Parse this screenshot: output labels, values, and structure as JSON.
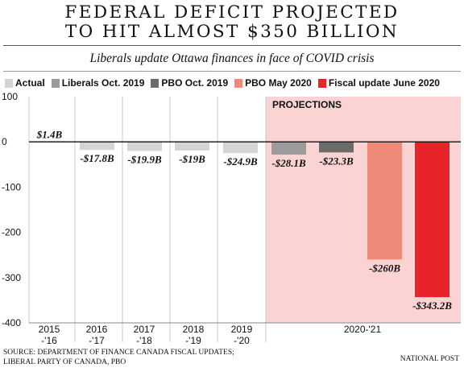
{
  "title_line1": "FEDERAL DEFICIT PROJECTED",
  "title_line2": "TO HIT ALMOST $350 BILLION",
  "subtitle": "Liberals update Ottawa finances in face of COVID crisis",
  "source_line1": "SOURCE: DEPARTMENT OF FINANCE CANADA FISCAL UPDATES;",
  "source_line2": "LIBERAL PARTY OF CANADA, PBO",
  "credit": "NATIONAL POST",
  "colors": {
    "actual": "#d4d4d4",
    "liberals_oct_2019": "#9b9b9b",
    "pbo_oct_2019": "#6b6b6b",
    "pbo_may_2020": "#f08a78",
    "fiscal_update_june_2020": "#e8242b",
    "projection_shade": "#fbd3d3"
  },
  "legend": [
    {
      "label": "Actual",
      "color": "#d4d4d4"
    },
    {
      "label": "Liberals Oct. 2019",
      "color": "#9b9b9b"
    },
    {
      "label": "PBO Oct. 2019",
      "color": "#6b6b6b"
    },
    {
      "label": "PBO May 2020",
      "color": "#f08a78"
    },
    {
      "label": "Fiscal update June 2020",
      "color": "#e8242b"
    }
  ],
  "chart_data": {
    "type": "bar",
    "ylim": [
      -400,
      100
    ],
    "yticks": [
      100,
      0,
      -100,
      -200,
      -300,
      -400
    ],
    "grid": "vertical separators between years",
    "projection_label": "PROJECTIONS",
    "categories": [
      {
        "line1": "2015",
        "line2": "-'16"
      },
      {
        "line1": "2016",
        "line2": "-'17"
      },
      {
        "line1": "2017",
        "line2": "-'18"
      },
      {
        "line1": "2018",
        "line2": "-'19"
      },
      {
        "line1": "2019",
        "line2": "-'20"
      },
      {
        "line1": "2020-'21",
        "line2": ""
      }
    ],
    "bars": [
      {
        "category": "2015-'16",
        "series": "Actual",
        "value": 1.4,
        "label": "$1.4B"
      },
      {
        "category": "2016-'17",
        "series": "Actual",
        "value": -17.8,
        "label": "-$17.8B"
      },
      {
        "category": "2017-'18",
        "series": "Actual",
        "value": -19.9,
        "label": "-$19.9B"
      },
      {
        "category": "2018-'19",
        "series": "Actual",
        "value": -19,
        "label": "-$19B"
      },
      {
        "category": "2019-'20",
        "series": "Actual",
        "value": -24.9,
        "label": "-$24.9B"
      },
      {
        "category": "2020-'21",
        "series": "Liberals Oct. 2019",
        "value": -28.1,
        "label": "-$28.1B"
      },
      {
        "category": "2020-'21",
        "series": "PBO Oct. 2019",
        "value": -23.3,
        "label": "-$23.3B"
      },
      {
        "category": "2020-'21",
        "series": "PBO May 2020",
        "value": -260,
        "label": "-$260B"
      },
      {
        "category": "2020-'21",
        "series": "Fiscal update June 2020",
        "value": -343.2,
        "label": "-$343.2B"
      }
    ]
  }
}
